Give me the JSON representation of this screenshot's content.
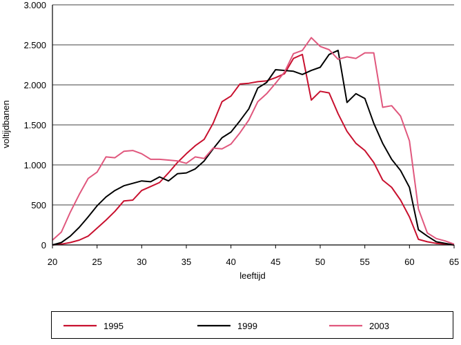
{
  "chart_data": {
    "type": "line",
    "title": "",
    "xlabel": "leeftijd",
    "ylabel": "voltijdbanen",
    "xlim": [
      20,
      65
    ],
    "ylim": [
      0,
      3000
    ],
    "x_ticks": [
      {
        "value": 20,
        "label": "20"
      },
      {
        "value": 25,
        "label": "25"
      },
      {
        "value": 30,
        "label": "30"
      },
      {
        "value": 35,
        "label": "35"
      },
      {
        "value": 40,
        "label": "40"
      },
      {
        "value": 45,
        "label": "45"
      },
      {
        "value": 50,
        "label": "50"
      },
      {
        "value": 55,
        "label": "55"
      },
      {
        "value": 60,
        "label": "60"
      },
      {
        "value": 65,
        "label": "65"
      }
    ],
    "y_ticks": [
      {
        "value": 0,
        "label": "0"
      },
      {
        "value": 500,
        "label": "500"
      },
      {
        "value": 1000,
        "label": "1.000"
      },
      {
        "value": 1500,
        "label": "1.500"
      },
      {
        "value": 2000,
        "label": "2.000"
      },
      {
        "value": 2500,
        "label": "2.500"
      },
      {
        "value": 3000,
        "label": "3.000"
      }
    ],
    "grid": true,
    "legend_position": "bottom",
    "x": [
      20,
      21,
      22,
      23,
      24,
      25,
      26,
      27,
      28,
      29,
      30,
      31,
      32,
      33,
      34,
      35,
      36,
      37,
      38,
      39,
      40,
      41,
      42,
      43,
      44,
      45,
      46,
      47,
      48,
      49,
      50,
      51,
      52,
      53,
      54,
      55,
      56,
      57,
      58,
      59,
      60,
      61,
      62,
      63,
      64,
      65
    ],
    "series": [
      {
        "name": "1995",
        "color": "#c8102e",
        "values": [
          0,
          10,
          30,
          60,
          110,
          210,
          310,
          420,
          550,
          560,
          680,
          730,
          780,
          900,
          1030,
          1140,
          1240,
          1320,
          1520,
          1790,
          1860,
          2010,
          2020,
          2040,
          2050,
          2090,
          2140,
          2330,
          2380,
          1810,
          1920,
          1900,
          1640,
          1420,
          1270,
          1180,
          1030,
          810,
          720,
          560,
          350,
          70,
          40,
          20,
          10,
          0
        ]
      },
      {
        "name": "1999",
        "color": "#000000",
        "values": [
          0,
          30,
          110,
          220,
          350,
          490,
          600,
          680,
          740,
          770,
          800,
          790,
          850,
          800,
          890,
          900,
          950,
          1050,
          1200,
          1340,
          1410,
          1550,
          1700,
          1960,
          2030,
          2190,
          2180,
          2170,
          2130,
          2180,
          2220,
          2380,
          2430,
          1780,
          1890,
          1830,
          1520,
          1270,
          1070,
          930,
          720,
          190,
          110,
          40,
          20,
          0
        ]
      },
      {
        "name": "2003",
        "color": "#e0577d",
        "values": [
          60,
          160,
          410,
          630,
          830,
          910,
          1100,
          1090,
          1170,
          1180,
          1140,
          1070,
          1070,
          1060,
          1050,
          1020,
          1100,
          1080,
          1210,
          1200,
          1260,
          1400,
          1560,
          1790,
          1890,
          2020,
          2160,
          2390,
          2430,
          2590,
          2480,
          2440,
          2320,
          2350,
          2330,
          2400,
          2400,
          1720,
          1740,
          1610,
          1300,
          450,
          150,
          80,
          50,
          10
        ]
      }
    ]
  }
}
